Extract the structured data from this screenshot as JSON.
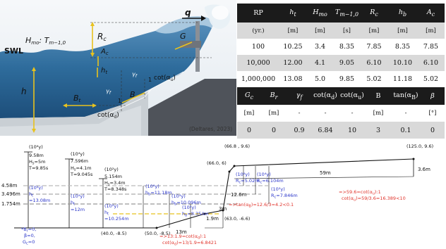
{
  "figure": {
    "credit": "(Deltares, 2023)",
    "labels": {
      "q": "q",
      "hmo": "H",
      "hmo_sub": "mo",
      "hmo_rest": ": T",
      "t_sub": "m−1,0",
      "swl": "SWL",
      "rc": "R",
      "rc_sub": "c",
      "ac": "A",
      "ac_sub": "c",
      "ht": "h",
      "ht_sub": "t",
      "h": "h",
      "bt": "B",
      "bt_sub": "t",
      "g": "G",
      "b": "B",
      "one_a": "1",
      "one_b": "1",
      "gamma_f": "γ",
      "gamma_f_sub": "f",
      "cot_u": "cot(α",
      "cot_u_sub": "u",
      "cot_d": "cot(α",
      "cot_d_sub": "d"
    }
  },
  "table1": {
    "headers": [
      "RP",
      "h",
      "H",
      "T",
      "R",
      "h",
      "A"
    ],
    "header_subs": [
      "",
      "t",
      "mo",
      "m−1,0",
      "c",
      "b",
      "c"
    ],
    "units": [
      "(yr.)",
      "[m]",
      "[m]",
      "[s]",
      "[m]",
      "[m]",
      "[m]"
    ],
    "rows": [
      [
        "100",
        "10.25",
        "3.4",
        "8.35",
        "7.85",
        "8.35",
        "7.85"
      ],
      [
        "10,000",
        "12.00",
        "4.1",
        "9.05",
        "6.10",
        "10.10",
        "6.10"
      ],
      [
        "1,000,000",
        "13.08",
        "5.0",
        "9.85",
        "5.02",
        "11.18",
        "5.02"
      ]
    ]
  },
  "table2": {
    "headers": [
      "G",
      "B",
      "γ",
      "cot(α",
      "cot(α",
      "B",
      "tan(α",
      "β"
    ],
    "header_subs": [
      "c",
      "r",
      "f",
      "d",
      "u",
      "",
      "B",
      ""
    ],
    "header_tails": [
      "",
      "",
      "",
      ")",
      ")",
      "",
      ")",
      ""
    ],
    "units": [
      "[m]",
      "[m]",
      "-",
      "-",
      "-",
      "[m]",
      "-",
      "[°]"
    ],
    "values": [
      "0",
      "0",
      "0.9",
      "6.84",
      "10",
      "3",
      "0.1",
      "0"
    ]
  },
  "schematic": {
    "levels": [
      "4.58m",
      "3.496m",
      "1.754m"
    ],
    "points": [
      "(66.8 , 9.6)",
      "(125.0, 9.6)",
      "(66.0, 6)",
      "(63.0, -6.6)",
      "(50.0, -8.5)",
      "(40.0, -8.5)"
    ],
    "dims": [
      "59m",
      "3.6m",
      "12.6m",
      "3m",
      "1.9m",
      "13m"
    ],
    "col1": [
      "(10⁶y)",
      "9.58m",
      "H",
      "s",
      "=5m",
      "T",
      "=9.85s",
      "(10⁶y)",
      "h",
      "t",
      "=13.08m"
    ],
    "col2": [
      "(10⁴y)",
      "7.596m",
      "H",
      "s",
      "=4.1m",
      "T",
      "=9.045s",
      "(10⁴y)",
      "h",
      "t",
      "=12m"
    ],
    "col3": [
      "(10²y)",
      "5.154m",
      "H",
      "s",
      "=3.4m",
      "T",
      "=8.348s",
      "(10²y)",
      "h",
      "t",
      "=10.254m"
    ],
    "hb": [
      [
        "(10⁶y)",
        "h",
        "b",
        "=11.18m"
      ],
      [
        "(10⁴y)",
        "h",
        "b",
        "=10.096m"
      ],
      [
        "(10²y)",
        "h",
        "b",
        "=8.354m"
      ]
    ],
    "rc": [
      [
        "(10⁶y)",
        "R",
        "c",
        "=5.02m"
      ],
      [
        "(10⁴y)",
        "R",
        "c",
        "=6.104m"
      ],
      [
        "(10²y)",
        "R",
        "c",
        "=7.846m"
      ]
    ],
    "params": [
      "*B",
      "r",
      "=0,",
      "β",
      "=0,",
      "G",
      "c",
      "=0"
    ],
    "tan_b": "=>tan(α",
    "tan_b_sub": "B",
    "tan_b_rest": ")=12.6/3=4.2<0.1",
    "cot_u1": "=>59.6=cot(α",
    "cot_u1_sub": "u",
    "cot_u1_rest": "):1",
    "cot_u2": "cot(α",
    "cot_u2_sub": "u",
    "cot_u2_rest": ")=59/3.6=16.389<10",
    "cot_d1": "=>13:1.9=cot(α",
    "cot_d1_sub": "d",
    "cot_d1_rest": "):1",
    "cot_d2": "cot(α",
    "cot_d2_sub": "d",
    "cot_d2_rest": ")=13/1.9=6.8421"
  },
  "colors": {
    "water": "#2f6e9e",
    "sky": "#eef3f7",
    "dike": "#5b5f66",
    "annot_yellow": "#e8c21e",
    "blue_text": "#2a35c9",
    "red_text": "#e0322a",
    "table_header": "#1b1b1b",
    "table_alt": "#d9d9d9"
  }
}
